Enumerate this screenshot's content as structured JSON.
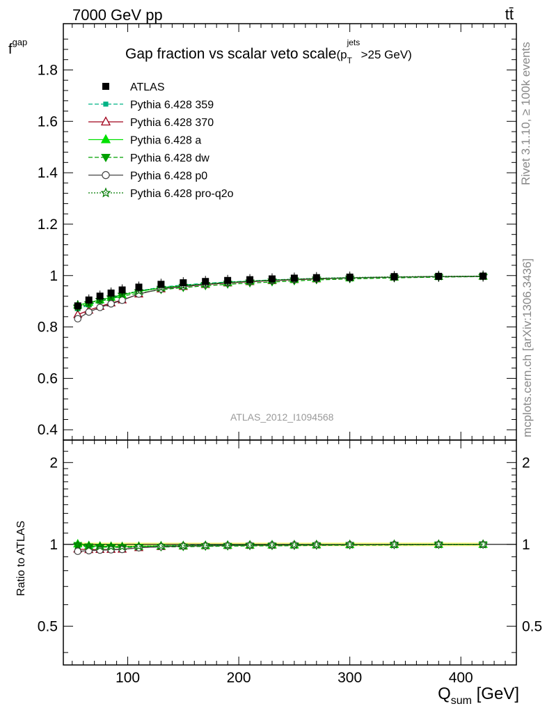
{
  "header": {
    "left": "7000 GeV pp",
    "right": "tt̄"
  },
  "side_labels": {
    "rivet": "Rivet 3.1.10, ≥ 100k events",
    "mcplots": "mcplots.cern.ch [arXiv:1306.3436]"
  },
  "colors": {
    "atlas": "#000000",
    "359": "#00b386",
    "370": "#a0001a",
    "a": "#00e000",
    "dw": "#00a000",
    "p0": "#444444",
    "pro_q2o": "#007a00",
    "band": "#ffff66",
    "watermark": "#999999"
  },
  "chart_data": [
    {
      "type": "line",
      "title": "Gap fraction vs scalar veto scale",
      "title_suffix": {
        "p": "(p",
        "sup": "jets",
        "sub": "T",
        "tail": ">25 GeV)"
      },
      "ylabel": {
        "main": "f",
        "sub": "gap"
      },
      "watermark": "ATLAS_2012_I1094568",
      "xlim": [
        42,
        450
      ],
      "ylim": [
        0.36,
        1.98
      ],
      "yticks": [
        0.4,
        0.6,
        0.8,
        1,
        1.2,
        1.4,
        1.6,
        1.8
      ],
      "ytick_labels": [
        "0.4",
        "0.6",
        "0.8",
        "1",
        "1.2",
        "1.4",
        "1.6",
        "1.8"
      ],
      "x": [
        55,
        65,
        75,
        85,
        95,
        110,
        130,
        150,
        170,
        190,
        210,
        230,
        250,
        270,
        300,
        340,
        380,
        420
      ],
      "series": [
        {
          "name": "ATLAS",
          "key": "atlas",
          "marker": "square",
          "dash": "none",
          "values": [
            0.882,
            0.905,
            0.92,
            0.932,
            0.944,
            0.955,
            0.966,
            0.972,
            0.977,
            0.981,
            0.984,
            0.987,
            0.99,
            0.992,
            0.994,
            0.996,
            0.997,
            0.998
          ]
        },
        {
          "name": "Pythia 6.428 359",
          "key": "359",
          "marker": "smallsquare",
          "dash": "6,3",
          "values": [
            0.87,
            0.885,
            0.9,
            0.912,
            0.925,
            0.94,
            0.955,
            0.963,
            0.97,
            0.975,
            0.979,
            0.983,
            0.986,
            0.989,
            0.992,
            0.994,
            0.996,
            0.997
          ]
        },
        {
          "name": "Pythia 6.428 370",
          "key": "370",
          "marker": "triangle-open",
          "dash": "none",
          "values": [
            0.848,
            0.865,
            0.88,
            0.893,
            0.905,
            0.928,
            0.948,
            0.957,
            0.965,
            0.971,
            0.976,
            0.98,
            0.984,
            0.987,
            0.991,
            0.994,
            0.996,
            0.997
          ]
        },
        {
          "name": "Pythia 6.428 a",
          "key": "a",
          "marker": "triangle",
          "dash": "none",
          "values": [
            0.885,
            0.895,
            0.905,
            0.915,
            0.925,
            0.938,
            0.952,
            0.96,
            0.967,
            0.973,
            0.978,
            0.982,
            0.985,
            0.988,
            0.991,
            0.994,
            0.996,
            0.997
          ]
        },
        {
          "name": "Pythia 6.428 dw",
          "key": "dw",
          "marker": "triangle-down",
          "dash": "6,3",
          "values": [
            0.875,
            0.888,
            0.9,
            0.91,
            0.92,
            0.932,
            0.945,
            0.953,
            0.96,
            0.966,
            0.971,
            0.975,
            0.979,
            0.983,
            0.987,
            0.991,
            0.994,
            0.996
          ]
        },
        {
          "name": "Pythia 6.428 p0",
          "key": "p0",
          "marker": "circle-open",
          "dash": "none",
          "values": [
            0.832,
            0.858,
            0.876,
            0.89,
            0.904,
            0.928,
            0.948,
            0.958,
            0.966,
            0.972,
            0.977,
            0.981,
            0.985,
            0.988,
            0.991,
            0.994,
            0.996,
            0.997
          ]
        },
        {
          "name": "Pythia 6.428 pro-q2o",
          "key": "pro_q2o",
          "marker": "star-open",
          "dash": "2,2",
          "values": [
            0.878,
            0.892,
            0.905,
            0.915,
            0.926,
            0.94,
            0.953,
            0.961,
            0.968,
            0.973,
            0.978,
            0.982,
            0.986,
            0.989,
            0.992,
            0.995,
            0.997,
            0.998
          ]
        }
      ]
    },
    {
      "type": "line",
      "ylabel": "Ratio to ATLAS",
      "xlabel": {
        "main": "Q",
        "sub": "sum",
        "tail": " [GeV]"
      },
      "xlim": [
        42,
        450
      ],
      "ylim": [
        0.36,
        2.42
      ],
      "log_y": true,
      "yticks": [
        0.5,
        1,
        2
      ],
      "ytick_labels": [
        "0.5",
        "1",
        "2"
      ],
      "xticks": [
        100,
        200,
        300,
        400
      ],
      "xtick_labels": [
        "100",
        "200",
        "300",
        "400"
      ],
      "x": [
        55,
        65,
        75,
        85,
        95,
        110,
        130,
        150,
        170,
        190,
        210,
        230,
        250,
        270,
        300,
        340,
        380,
        420
      ],
      "series": [
        {
          "name": "Pythia 6.428 359",
          "key": "359",
          "marker": "smallsquare",
          "dash": "6,3",
          "values": [
            0.986,
            0.978,
            0.978,
            0.979,
            0.98,
            0.984,
            0.989,
            0.991,
            0.993,
            0.994,
            0.995,
            0.996,
            0.996,
            0.997,
            0.998,
            0.998,
            0.999,
            0.999
          ]
        },
        {
          "name": "Pythia 6.428 370",
          "key": "370",
          "marker": "triangle-open",
          "dash": "none",
          "values": [
            0.961,
            0.956,
            0.957,
            0.958,
            0.959,
            0.972,
            0.981,
            0.985,
            0.988,
            0.99,
            0.992,
            0.993,
            0.994,
            0.995,
            0.997,
            0.998,
            0.999,
            0.999
          ]
        },
        {
          "name": "Pythia 6.428 a",
          "key": "a",
          "marker": "triangle",
          "dash": "none",
          "values": [
            1.003,
            0.989,
            0.984,
            0.982,
            0.98,
            0.982,
            0.986,
            0.988,
            0.99,
            0.992,
            0.994,
            0.995,
            0.995,
            0.996,
            0.997,
            0.998,
            0.999,
            0.999
          ]
        },
        {
          "name": "Pythia 6.428 dw",
          "key": "dw",
          "marker": "triangle-down",
          "dash": "6,3",
          "values": [
            0.992,
            0.981,
            0.978,
            0.976,
            0.975,
            0.976,
            0.978,
            0.98,
            0.983,
            0.985,
            0.987,
            0.988,
            0.989,
            0.991,
            0.993,
            0.995,
            0.997,
            0.998
          ]
        },
        {
          "name": "Pythia 6.428 p0",
          "key": "p0",
          "marker": "circle-open",
          "dash": "none",
          "values": [
            0.943,
            0.948,
            0.952,
            0.955,
            0.958,
            0.972,
            0.981,
            0.986,
            0.989,
            0.991,
            0.993,
            0.994,
            0.995,
            0.996,
            0.997,
            0.998,
            0.999,
            0.999
          ]
        },
        {
          "name": "Pythia 6.428 pro-q2o",
          "key": "pro_q2o",
          "marker": "star-open",
          "dash": "2,2",
          "values": [
            0.995,
            0.986,
            0.984,
            0.982,
            0.981,
            0.984,
            0.987,
            0.989,
            0.991,
            0.992,
            0.994,
            0.995,
            0.996,
            0.997,
            0.998,
            0.999,
            1.0,
            1.0
          ]
        }
      ]
    }
  ]
}
